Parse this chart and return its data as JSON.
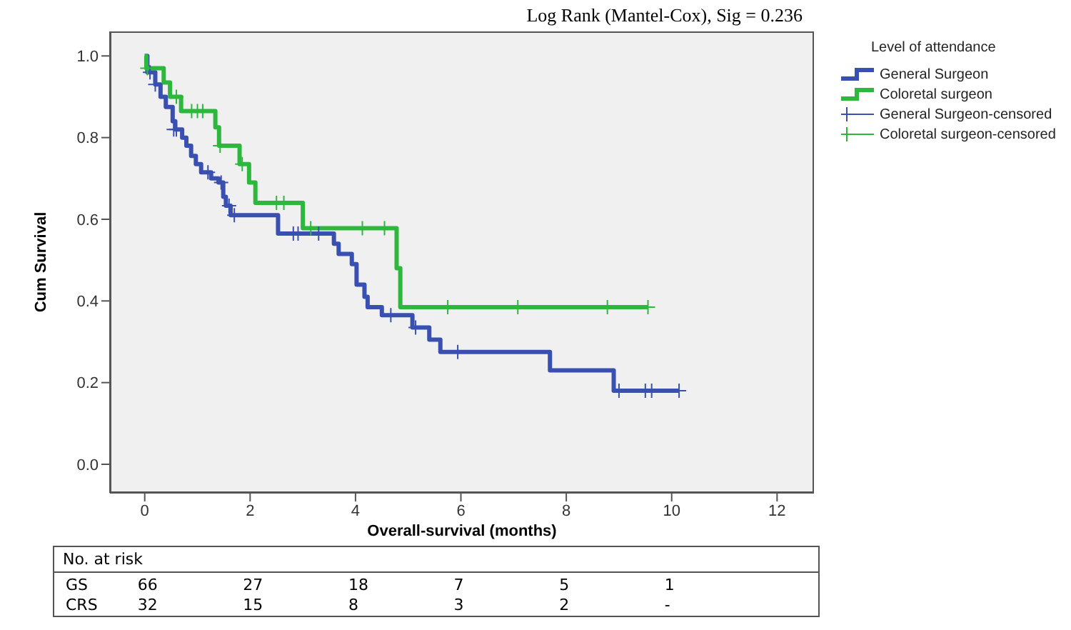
{
  "chart_data": {
    "type": "step",
    "xlabel": "Overall-survival (months)",
    "ylabel": "Cum Survival",
    "legend_title": "Level of attendance",
    "legend": "right",
    "xlim": [
      -0.66,
      12.7
    ],
    "xticks": [
      0,
      2,
      4,
      6,
      8,
      10,
      12
    ],
    "ylim": [
      -0.07,
      1.06
    ],
    "yticks": [
      {
        "value": 0,
        "label": "0.0"
      },
      0.2,
      0.4,
      0.6,
      0.8,
      {
        "value": 1,
        "label": "1.0"
      }
    ],
    "annotations": [
      "Log Rank (Mantel-Cox), Sig = 0.236",
      "No. at risk",
      "GS",
      "66",
      "27",
      "18",
      "7",
      "5",
      "1",
      "CRS",
      "32",
      "15",
      "8",
      "3",
      "2",
      "-"
    ],
    "series": [
      {
        "name": "General Surgeon",
        "color": "#3a50b0",
        "marker": "none",
        "line_style": "solid",
        "x": [
          0,
          0.05,
          0.2,
          0.3,
          0.4,
          0.53,
          0.58,
          0.71,
          0.79,
          0.88,
          0.97,
          1.07,
          1.26,
          1.4,
          1.49,
          1.54,
          1.63,
          2.53,
          3.59,
          3.68,
          3.93,
          4.02,
          4.17,
          4.23,
          4.5,
          5.08,
          5.4,
          5.61,
          7.69,
          8.9,
          10.14
        ],
        "values": [
          1.0,
          0.96,
          0.93,
          0.9,
          0.875,
          0.84,
          0.82,
          0.8,
          0.78,
          0.755,
          0.735,
          0.715,
          0.7,
          0.69,
          0.655,
          0.633,
          0.61,
          0.565,
          0.54,
          0.515,
          0.49,
          0.44,
          0.41,
          0.385,
          0.365,
          0.335,
          0.305,
          0.275,
          0.23,
          0.18,
          0.18
        ]
      },
      {
        "name": "Coloretal surgeon",
        "color": "#2db83d",
        "marker": "none",
        "line_style": "solid",
        "x": [
          0,
          0.03,
          0.36,
          0.48,
          0.69,
          1.34,
          1.41,
          1.8,
          1.98,
          2.1,
          3.0,
          4.78,
          4.85,
          9.55
        ],
        "values": [
          1.0,
          0.97,
          0.935,
          0.9,
          0.865,
          0.825,
          0.78,
          0.735,
          0.69,
          0.64,
          0.578,
          0.48,
          0.385,
          0.385
        ]
      },
      {
        "name": "General Surgeon-censored",
        "type": "scatter",
        "color": "#3a50b0",
        "marker": "cross",
        "x": [
          0.1,
          0.2,
          0.55,
          0.6,
          1.2,
          1.45,
          1.6,
          1.7,
          2.82,
          2.91,
          3.3,
          4.67,
          5.14,
          5.94,
          9.0,
          9.5,
          9.62,
          10.14
        ],
        "values": [
          0.96,
          0.93,
          0.82,
          0.82,
          0.715,
          0.69,
          0.633,
          0.61,
          0.565,
          0.565,
          0.565,
          0.365,
          0.335,
          0.275,
          0.18,
          0.18,
          0.18,
          0.18
        ]
      },
      {
        "name": "Coloretal surgeon-censored",
        "type": "scatter",
        "color": "#2db83d",
        "marker": "cross",
        "x": [
          0.05,
          0.6,
          0.89,
          1.0,
          1.1,
          1.43,
          1.85,
          2.5,
          2.64,
          3.15,
          4.13,
          4.55,
          5.75,
          7.08,
          8.78,
          9.55
        ],
        "values": [
          0.97,
          0.9,
          0.865,
          0.865,
          0.865,
          0.78,
          0.735,
          0.64,
          0.64,
          0.578,
          0.578,
          0.578,
          0.385,
          0.385,
          0.385,
          0.385
        ]
      }
    ]
  }
}
